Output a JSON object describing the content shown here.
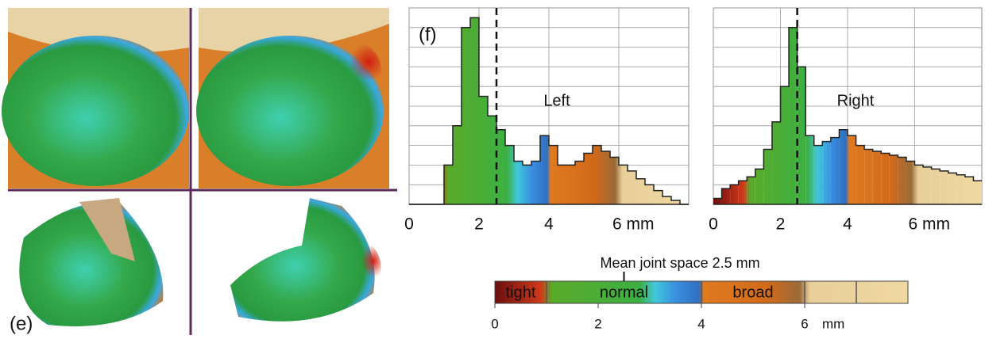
{
  "panel_e": {
    "label": "(e)"
  },
  "colormap": [
    {
      "value": 0,
      "color": "#6b0f0f"
    },
    {
      "value": 0.9,
      "color": "#d03a1a"
    },
    {
      "value": 1.1,
      "color": "#5aaa2a"
    },
    {
      "value": 2.8,
      "color": "#3cb043"
    },
    {
      "value": 3.1,
      "color": "#40c8d8"
    },
    {
      "value": 3.5,
      "color": "#3a8fe0"
    },
    {
      "value": 3.95,
      "color": "#3070c0"
    },
    {
      "value": 4.05,
      "color": "#e07a20"
    },
    {
      "value": 5.3,
      "color": "#d06a1a"
    },
    {
      "value": 5.9,
      "color": "#9a6a3a"
    },
    {
      "value": 6.1,
      "color": "#e8cf9a"
    },
    {
      "value": 8,
      "color": "#f0d8a0"
    }
  ],
  "chart_data": [
    {
      "type": "histogram",
      "label": "(f)",
      "annotation": "Left",
      "mean": 2.5,
      "bins": [
        0,
        0.25,
        0.5,
        0.75,
        1,
        1.25,
        1.5,
        1.75,
        2,
        2.25,
        2.5,
        2.75,
        3,
        3.25,
        3.5,
        3.75,
        4,
        4.25,
        4.5,
        4.75,
        5,
        5.25,
        5.5,
        5.75,
        6,
        6.25,
        6.5,
        6.75,
        7,
        7.25,
        7.5,
        7.75,
        8
      ],
      "values": [
        0,
        0,
        0,
        0,
        20,
        40,
        90,
        95,
        55,
        45,
        38,
        30,
        22,
        20,
        22,
        35,
        30,
        20,
        20,
        22,
        26,
        30,
        27,
        24,
        20,
        17,
        13,
        10,
        7,
        4,
        2,
        0
      ],
      "xlim": [
        0,
        8
      ],
      "xticks": [
        0,
        2,
        4,
        {
          "value": 6,
          "label": "6 mm"
        }
      ],
      "ylim": [
        0,
        100
      ],
      "yticks": [
        0,
        10,
        20,
        30,
        40,
        50,
        60,
        70,
        80,
        90,
        100
      ],
      "grid": true
    },
    {
      "type": "histogram",
      "annotation": "Right",
      "mean": 2.5,
      "bins": [
        0,
        0.25,
        0.5,
        0.75,
        1,
        1.25,
        1.5,
        1.75,
        2,
        2.25,
        2.5,
        2.75,
        3,
        3.25,
        3.5,
        3.75,
        4,
        4.25,
        4.5,
        4.75,
        5,
        5.25,
        5.5,
        5.75,
        6,
        6.25,
        6.5,
        6.75,
        7,
        7.25,
        7.5,
        7.75,
        8
      ],
      "values": [
        3,
        8,
        10,
        12,
        14,
        18,
        28,
        42,
        60,
        90,
        70,
        35,
        30,
        32,
        34,
        38,
        35,
        30,
        28,
        27,
        26,
        25,
        24,
        22,
        20,
        19,
        18,
        17,
        16,
        15,
        14,
        12
      ],
      "xlim": [
        0,
        8
      ],
      "xticks": [
        0,
        2,
        4,
        {
          "value": 6,
          "label": "6 mm"
        }
      ],
      "ylim": [
        0,
        100
      ],
      "yticks": [
        0,
        10,
        20,
        30,
        40,
        50,
        60,
        70,
        80,
        90,
        100
      ],
      "grid": true
    },
    {
      "type": "colorbar",
      "title": "Mean joint space 2.5 mm",
      "mean": 2.5,
      "xlim": [
        0,
        8
      ],
      "xticks": [
        0,
        2,
        4,
        6
      ],
      "unit": "mm",
      "dividers": [
        1,
        4,
        6,
        7
      ],
      "zones": [
        {
          "label": "tight",
          "value": 0.5
        },
        {
          "label": "normal",
          "value": 2.5
        },
        {
          "label": "broad",
          "value": 5
        }
      ]
    }
  ]
}
